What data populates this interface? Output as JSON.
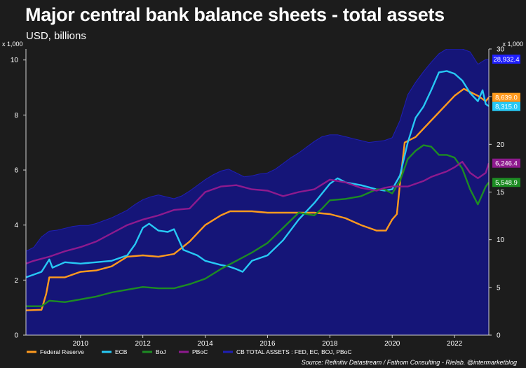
{
  "page": {
    "title": "Major central bank balance sheets - total assets",
    "subtitle": "USD, billions",
    "source": "Source: Refinitiv Datastream / Fathom Consulting - Rielab. @intermarketblog"
  },
  "chart_data": {
    "type": "line",
    "background": "#1c1c1c",
    "left_axis": {
      "unit_label": "x 1,000",
      "range": [
        0,
        10.4
      ],
      "ticks": [
        0,
        2,
        4,
        6,
        8,
        10
      ],
      "tick_labels": [
        "0",
        "2",
        "4",
        "6",
        "8",
        "10"
      ]
    },
    "right_axis": {
      "unit_label": "x 1,000",
      "range": [
        0,
        30
      ],
      "ticks": [
        0,
        5,
        10,
        15,
        20,
        25,
        30
      ],
      "tick_labels": [
        "0",
        "5",
        "10",
        "15",
        "20",
        "25",
        "30"
      ]
    },
    "x_axis": {
      "range": [
        2008.25,
        2023.1
      ],
      "ticks": [
        2010,
        2012,
        2014,
        2016,
        2018,
        2020,
        2022
      ],
      "tick_labels": [
        "2010",
        "2012",
        "2014",
        "2016",
        "2018",
        "2020",
        "2022"
      ]
    },
    "grid": false,
    "legend_position": "bottom",
    "series": [
      {
        "name": "CB TOTAL ASSETS : FED, EC, BOJ, PBoC",
        "type": "area",
        "axis": "right",
        "color": "#151578",
        "edge_color": "#1f1fb5",
        "points": [
          [
            2008.25,
            8.8
          ],
          [
            2008.5,
            9.2
          ],
          [
            2008.75,
            10.3
          ],
          [
            2009.0,
            10.9
          ],
          [
            2009.25,
            11.0
          ],
          [
            2009.5,
            11.2
          ],
          [
            2009.75,
            11.4
          ],
          [
            2010.0,
            11.5
          ],
          [
            2010.25,
            11.5
          ],
          [
            2010.5,
            11.7
          ],
          [
            2010.75,
            12.0
          ],
          [
            2011.0,
            12.3
          ],
          [
            2011.25,
            12.7
          ],
          [
            2011.5,
            13.1
          ],
          [
            2011.75,
            13.7
          ],
          [
            2012.0,
            14.2
          ],
          [
            2012.25,
            14.5
          ],
          [
            2012.5,
            14.7
          ],
          [
            2012.75,
            14.5
          ],
          [
            2013.0,
            14.3
          ],
          [
            2013.25,
            14.6
          ],
          [
            2013.5,
            15.1
          ],
          [
            2013.75,
            15.7
          ],
          [
            2014.0,
            16.3
          ],
          [
            2014.25,
            16.8
          ],
          [
            2014.5,
            17.2
          ],
          [
            2014.75,
            17.4
          ],
          [
            2015.0,
            17.0
          ],
          [
            2015.25,
            16.6
          ],
          [
            2015.5,
            16.7
          ],
          [
            2015.75,
            16.9
          ],
          [
            2016.0,
            17.0
          ],
          [
            2016.25,
            17.4
          ],
          [
            2016.5,
            18.0
          ],
          [
            2016.75,
            18.6
          ],
          [
            2017.0,
            19.1
          ],
          [
            2017.25,
            19.7
          ],
          [
            2017.5,
            20.3
          ],
          [
            2017.75,
            20.8
          ],
          [
            2018.0,
            21.0
          ],
          [
            2018.25,
            21.0
          ],
          [
            2018.5,
            20.8
          ],
          [
            2018.75,
            20.6
          ],
          [
            2019.0,
            20.4
          ],
          [
            2019.25,
            20.2
          ],
          [
            2019.5,
            20.3
          ],
          [
            2019.75,
            20.4
          ],
          [
            2020.0,
            20.7
          ],
          [
            2020.25,
            22.5
          ],
          [
            2020.5,
            25.2
          ],
          [
            2020.75,
            26.5
          ],
          [
            2021.0,
            27.6
          ],
          [
            2021.25,
            28.6
          ],
          [
            2021.5,
            29.5
          ],
          [
            2021.75,
            30.8
          ],
          [
            2022.0,
            31.2
          ],
          [
            2022.25,
            30.9
          ],
          [
            2022.5,
            29.7
          ],
          [
            2022.75,
            28.4
          ],
          [
            2023.0,
            28.9
          ],
          [
            2023.1,
            28.93
          ]
        ],
        "last_value_label": "28,932.4"
      },
      {
        "name": "Federal Reserve",
        "axis": "left",
        "color": "#ff9a1e",
        "points": [
          [
            2008.25,
            0.9
          ],
          [
            2008.75,
            0.92
          ],
          [
            2008.9,
            1.5
          ],
          [
            2009.0,
            2.1
          ],
          [
            2009.5,
            2.1
          ],
          [
            2010.0,
            2.3
          ],
          [
            2010.5,
            2.35
          ],
          [
            2011.0,
            2.5
          ],
          [
            2011.5,
            2.85
          ],
          [
            2012.0,
            2.9
          ],
          [
            2012.5,
            2.85
          ],
          [
            2013.0,
            2.95
          ],
          [
            2013.5,
            3.4
          ],
          [
            2014.0,
            4.0
          ],
          [
            2014.5,
            4.35
          ],
          [
            2014.8,
            4.5
          ],
          [
            2015.5,
            4.5
          ],
          [
            2016.0,
            4.45
          ],
          [
            2016.5,
            4.45
          ],
          [
            2017.0,
            4.45
          ],
          [
            2017.5,
            4.45
          ],
          [
            2018.0,
            4.4
          ],
          [
            2018.5,
            4.25
          ],
          [
            2019.0,
            4.0
          ],
          [
            2019.5,
            3.8
          ],
          [
            2019.8,
            3.8
          ],
          [
            2020.0,
            4.2
          ],
          [
            2020.15,
            4.4
          ],
          [
            2020.25,
            5.5
          ],
          [
            2020.4,
            7.0
          ],
          [
            2020.75,
            7.2
          ],
          [
            2021.0,
            7.5
          ],
          [
            2021.5,
            8.1
          ],
          [
            2022.0,
            8.7
          ],
          [
            2022.3,
            8.95
          ],
          [
            2022.75,
            8.7
          ],
          [
            2023.0,
            8.5
          ],
          [
            2023.1,
            8.64
          ]
        ],
        "last_value_label": "8,639.0"
      },
      {
        "name": "ECB",
        "axis": "left",
        "color": "#27c9f5",
        "points": [
          [
            2008.25,
            2.1
          ],
          [
            2008.5,
            2.2
          ],
          [
            2008.75,
            2.3
          ],
          [
            2009.0,
            2.75
          ],
          [
            2009.1,
            2.45
          ],
          [
            2009.5,
            2.65
          ],
          [
            2010.0,
            2.6
          ],
          [
            2010.5,
            2.65
          ],
          [
            2011.0,
            2.7
          ],
          [
            2011.5,
            2.9
          ],
          [
            2011.75,
            3.3
          ],
          [
            2012.0,
            3.9
          ],
          [
            2012.2,
            4.05
          ],
          [
            2012.5,
            3.8
          ],
          [
            2012.8,
            3.75
          ],
          [
            2013.0,
            3.85
          ],
          [
            2013.3,
            3.1
          ],
          [
            2013.75,
            2.9
          ],
          [
            2014.0,
            2.7
          ],
          [
            2014.5,
            2.55
          ],
          [
            2014.75,
            2.5
          ],
          [
            2015.0,
            2.4
          ],
          [
            2015.2,
            2.3
          ],
          [
            2015.5,
            2.7
          ],
          [
            2016.0,
            2.9
          ],
          [
            2016.5,
            3.45
          ],
          [
            2017.0,
            4.2
          ],
          [
            2017.5,
            4.8
          ],
          [
            2018.0,
            5.5
          ],
          [
            2018.25,
            5.7
          ],
          [
            2018.5,
            5.55
          ],
          [
            2019.0,
            5.45
          ],
          [
            2019.5,
            5.3
          ],
          [
            2019.75,
            5.25
          ],
          [
            2020.0,
            5.3
          ],
          [
            2020.25,
            5.8
          ],
          [
            2020.5,
            7.0
          ],
          [
            2020.75,
            7.9
          ],
          [
            2021.0,
            8.3
          ],
          [
            2021.25,
            8.9
          ],
          [
            2021.5,
            9.55
          ],
          [
            2021.75,
            9.6
          ],
          [
            2022.0,
            9.5
          ],
          [
            2022.25,
            9.25
          ],
          [
            2022.5,
            8.8
          ],
          [
            2022.75,
            8.5
          ],
          [
            2022.9,
            8.9
          ],
          [
            2023.0,
            8.4
          ],
          [
            2023.1,
            8.32
          ]
        ],
        "last_value_label": "8,315.0"
      },
      {
        "name": "BoJ",
        "axis": "left",
        "color": "#1d8c23",
        "points": [
          [
            2008.25,
            1.05
          ],
          [
            2008.75,
            1.05
          ],
          [
            2009.0,
            1.25
          ],
          [
            2009.5,
            1.2
          ],
          [
            2010.0,
            1.3
          ],
          [
            2010.5,
            1.4
          ],
          [
            2011.0,
            1.55
          ],
          [
            2011.5,
            1.65
          ],
          [
            2012.0,
            1.75
          ],
          [
            2012.5,
            1.7
          ],
          [
            2013.0,
            1.7
          ],
          [
            2013.5,
            1.85
          ],
          [
            2014.0,
            2.05
          ],
          [
            2014.5,
            2.4
          ],
          [
            2015.0,
            2.7
          ],
          [
            2015.5,
            3.0
          ],
          [
            2016.0,
            3.35
          ],
          [
            2016.5,
            3.9
          ],
          [
            2017.0,
            4.45
          ],
          [
            2017.5,
            4.35
          ],
          [
            2017.75,
            4.6
          ],
          [
            2018.0,
            4.9
          ],
          [
            2018.5,
            4.95
          ],
          [
            2019.0,
            5.05
          ],
          [
            2019.5,
            5.3
          ],
          [
            2019.75,
            5.3
          ],
          [
            2020.0,
            5.15
          ],
          [
            2020.25,
            5.6
          ],
          [
            2020.5,
            6.4
          ],
          [
            2020.75,
            6.7
          ],
          [
            2021.0,
            6.9
          ],
          [
            2021.25,
            6.85
          ],
          [
            2021.5,
            6.55
          ],
          [
            2021.75,
            6.55
          ],
          [
            2022.0,
            6.45
          ],
          [
            2022.25,
            6.05
          ],
          [
            2022.5,
            5.3
          ],
          [
            2022.75,
            4.75
          ],
          [
            2023.0,
            5.4
          ],
          [
            2023.1,
            5.55
          ]
        ],
        "last_value_label": "5,548.9"
      },
      {
        "name": "PBoC",
        "axis": "left",
        "color": "#8e1a8e",
        "points": [
          [
            2008.25,
            2.6
          ],
          [
            2008.5,
            2.7
          ],
          [
            2009.0,
            2.85
          ],
          [
            2009.5,
            3.05
          ],
          [
            2010.0,
            3.2
          ],
          [
            2010.5,
            3.4
          ],
          [
            2011.0,
            3.7
          ],
          [
            2011.5,
            4.0
          ],
          [
            2012.0,
            4.2
          ],
          [
            2012.5,
            4.35
          ],
          [
            2013.0,
            4.55
          ],
          [
            2013.5,
            4.6
          ],
          [
            2014.0,
            5.2
          ],
          [
            2014.5,
            5.4
          ],
          [
            2015.0,
            5.45
          ],
          [
            2015.5,
            5.3
          ],
          [
            2016.0,
            5.25
          ],
          [
            2016.5,
            5.05
          ],
          [
            2017.0,
            5.2
          ],
          [
            2017.5,
            5.3
          ],
          [
            2018.0,
            5.65
          ],
          [
            2018.5,
            5.55
          ],
          [
            2019.0,
            5.35
          ],
          [
            2019.5,
            5.25
          ],
          [
            2019.75,
            5.35
          ],
          [
            2020.0,
            5.4
          ],
          [
            2020.5,
            5.4
          ],
          [
            2021.0,
            5.6
          ],
          [
            2021.25,
            5.75
          ],
          [
            2021.5,
            5.85
          ],
          [
            2021.75,
            5.95
          ],
          [
            2022.0,
            6.1
          ],
          [
            2022.25,
            6.3
          ],
          [
            2022.5,
            5.9
          ],
          [
            2022.75,
            5.7
          ],
          [
            2023.0,
            5.9
          ],
          [
            2023.1,
            6.25
          ]
        ],
        "last_value_label": "6,246.4"
      }
    ]
  }
}
